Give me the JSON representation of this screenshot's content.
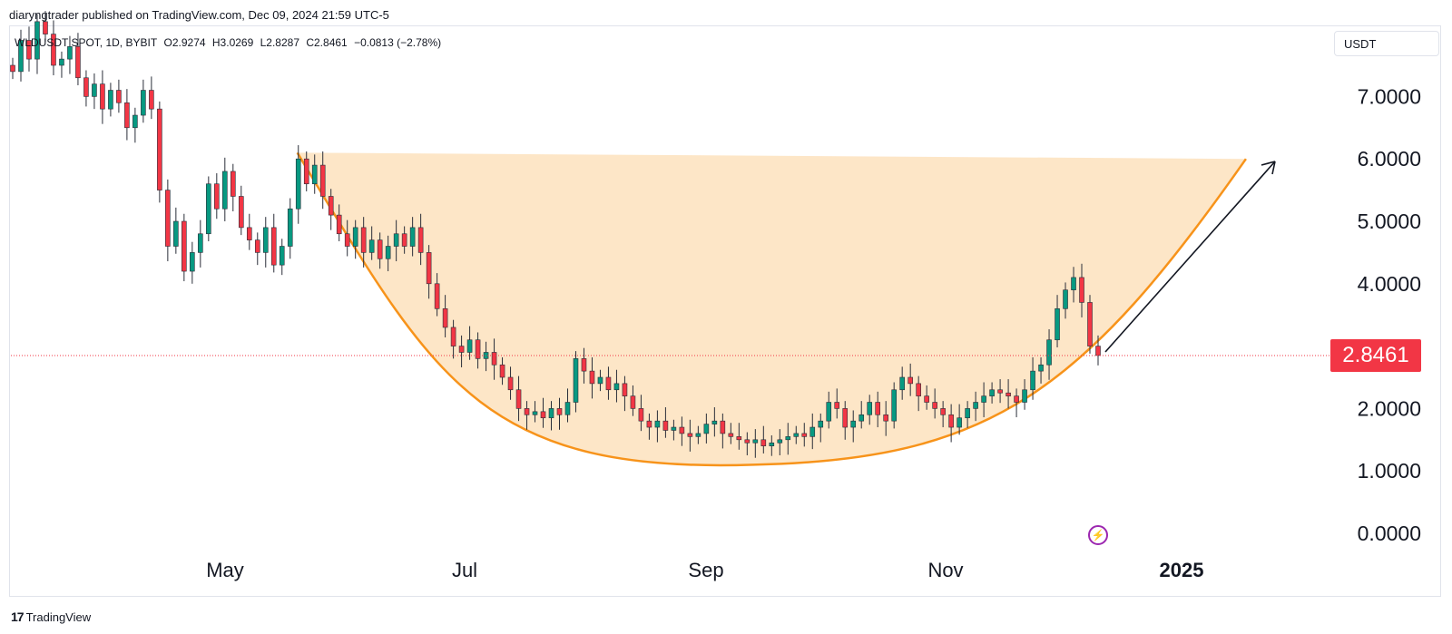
{
  "header": {
    "published_by": "diaryngtrader published on TradingView.com, Dec 09, 2024 21:59 UTC-5"
  },
  "legend": {
    "symbol": "WLDUSDT SPOT, 1D, BYBIT",
    "open": "O2.9274",
    "high": "H3.0269",
    "low": "L2.8287",
    "close": "C2.8461",
    "change": "−0.0813 (−2.78%)"
  },
  "currency_button": "USDT",
  "footer": {
    "brand": "TradingView",
    "logo": "17"
  },
  "icons": {
    "alert": "lightning-bolt-icon"
  },
  "colors": {
    "up": "#089981",
    "down": "#f23645",
    "cup_fill": "#fde5c4",
    "cup_line": "#f7931a",
    "badge": "#f23645",
    "arrow": "#131722"
  },
  "chart_data": {
    "type": "candlestick",
    "title": "",
    "x_ticks": [
      "May",
      "Jul",
      "Sep",
      "Nov",
      "2025"
    ],
    "y_ticks": [
      "7.0000",
      "6.0000",
      "5.0000",
      "4.0000",
      "2.0000",
      "1.0000",
      "0.0000"
    ],
    "ylim": [
      0,
      8
    ],
    "last_price": "2.8461",
    "price_line": 2.8461,
    "closes": [
      7.4,
      7.9,
      7.6,
      8.2,
      8.0,
      7.5,
      7.6,
      7.8,
      7.3,
      7.0,
      7.2,
      6.8,
      7.1,
      6.9,
      6.5,
      6.7,
      7.1,
      6.8,
      5.5,
      4.6,
      5.0,
      4.2,
      4.5,
      4.8,
      5.6,
      5.2,
      5.8,
      5.4,
      4.9,
      4.7,
      4.5,
      4.9,
      4.3,
      4.6,
      5.2,
      6.0,
      5.6,
      5.9,
      5.4,
      5.1,
      4.8,
      4.6,
      4.9,
      4.5,
      4.7,
      4.4,
      4.6,
      4.8,
      4.6,
      4.9,
      4.5,
      4.0,
      3.6,
      3.3,
      3.0,
      2.9,
      3.1,
      2.8,
      2.9,
      2.7,
      2.5,
      2.3,
      2.0,
      1.9,
      1.95,
      1.85,
      2.0,
      1.9,
      2.1,
      2.8,
      2.6,
      2.4,
      2.5,
      2.3,
      2.4,
      2.2,
      2.0,
      1.8,
      1.7,
      1.8,
      1.65,
      1.7,
      1.6,
      1.55,
      1.6,
      1.75,
      1.8,
      1.6,
      1.55,
      1.5,
      1.45,
      1.5,
      1.4,
      1.45,
      1.5,
      1.55,
      1.6,
      1.55,
      1.7,
      1.8,
      2.1,
      2.0,
      1.7,
      1.8,
      1.9,
      2.1,
      1.9,
      1.8,
      2.3,
      2.5,
      2.4,
      2.2,
      2.1,
      2.0,
      1.9,
      1.7,
      1.85,
      2.0,
      2.1,
      2.2,
      2.3,
      2.25,
      2.2,
      2.1,
      2.3,
      2.6,
      2.7,
      3.1,
      3.6,
      3.9,
      4.1,
      3.7,
      3.0,
      2.85
    ],
    "cup_rim": {
      "start": [
        0.165,
        6.1
      ],
      "end": [
        0.855,
        6.0
      ]
    },
    "cup_bottom": [
      0.51,
      1.1
    ]
  }
}
